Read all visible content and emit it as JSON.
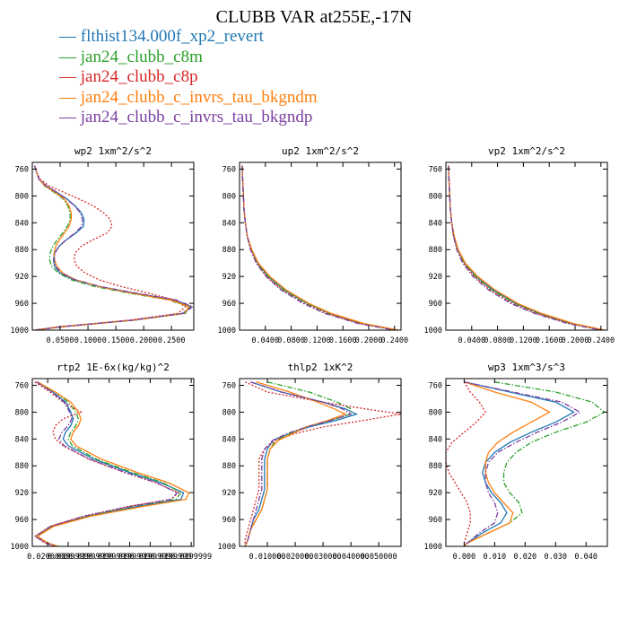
{
  "figure": {
    "title": "CLUBB VAR at255E,-17N",
    "legend": [
      {
        "label": "flthist134.000f_xp2_revert",
        "color": "#1f77b4",
        "dash": "solid"
      },
      {
        "label": "jan24_clubb_c8m",
        "color": "#2ca02c",
        "dash": "dashdot"
      },
      {
        "label": "jan24_clubb_c8p",
        "color": "#d62728",
        "dash": "dotted"
      },
      {
        "label": "jan24_clubb_c_invrs_tau_bkgndm",
        "color": "#ff7f0e",
        "dash": "solid"
      },
      {
        "label": "jan24_clubb_c_invrs_tau_bkgndp",
        "color": "#7b3fa0",
        "dash": "dashdot"
      }
    ]
  },
  "chart_data": [
    {
      "type": "line",
      "title": "wp2  1xm^2/s^2",
      "ylim": [
        1000,
        750
      ],
      "xlim": [
        0,
        0.29
      ],
      "y_ticks": [
        760,
        800,
        840,
        880,
        920,
        960,
        1000
      ],
      "x_ticks": [
        0.05,
        0.1,
        0.15,
        0.2,
        0.25
      ],
      "x_tick_labels": [
        "0.0500",
        "0.1000",
        "0.1500",
        "0.2000",
        "0.2500"
      ],
      "grid": false,
      "y": [
        755,
        765,
        775,
        785,
        795,
        805,
        815,
        825,
        835,
        845,
        855,
        865,
        875,
        885,
        895,
        905,
        915,
        925,
        935,
        945,
        955,
        965,
        975,
        985,
        995,
        1000
      ],
      "series": [
        {
          "values": [
            0.004,
            0.008,
            0.012,
            0.025,
            0.045,
            0.063,
            0.077,
            0.088,
            0.093,
            0.092,
            0.079,
            0.062,
            0.048,
            0.04,
            0.038,
            0.04,
            0.05,
            0.075,
            0.12,
            0.185,
            0.255,
            0.285,
            0.27,
            0.18,
            0.05,
            0.005
          ]
        },
        {
          "values": [
            0.004,
            0.008,
            0.012,
            0.022,
            0.04,
            0.056,
            0.064,
            0.068,
            0.068,
            0.063,
            0.055,
            0.045,
            0.037,
            0.032,
            0.031,
            0.035,
            0.047,
            0.07,
            0.112,
            0.175,
            0.245,
            0.28,
            0.275,
            0.185,
            0.055,
            0.005
          ]
        },
        {
          "values": [
            0.004,
            0.008,
            0.014,
            0.03,
            0.058,
            0.085,
            0.11,
            0.128,
            0.14,
            0.143,
            0.135,
            0.11,
            0.088,
            0.077,
            0.075,
            0.08,
            0.095,
            0.12,
            0.16,
            0.21,
            0.255,
            0.275,
            0.262,
            0.175,
            0.045,
            0.004
          ]
        },
        {
          "values": [
            0.004,
            0.008,
            0.012,
            0.023,
            0.042,
            0.058,
            0.066,
            0.07,
            0.07,
            0.066,
            0.058,
            0.049,
            0.042,
            0.039,
            0.04,
            0.044,
            0.055,
            0.078,
            0.12,
            0.18,
            0.248,
            0.282,
            0.272,
            0.182,
            0.052,
            0.005
          ]
        },
        {
          "values": [
            0.004,
            0.008,
            0.012,
            0.025,
            0.045,
            0.062,
            0.076,
            0.086,
            0.09,
            0.089,
            0.077,
            0.061,
            0.048,
            0.041,
            0.039,
            0.042,
            0.052,
            0.077,
            0.122,
            0.188,
            0.258,
            0.288,
            0.272,
            0.182,
            0.052,
            0.005
          ]
        }
      ]
    },
    {
      "type": "line",
      "title": "up2  1xm^2/s^2",
      "ylim": [
        1000,
        750
      ],
      "xlim": [
        0,
        0.25
      ],
      "y_ticks": [
        760,
        800,
        840,
        880,
        920,
        960,
        1000
      ],
      "x_ticks": [
        0.04,
        0.08,
        0.12,
        0.16,
        0.2,
        0.24
      ],
      "x_tick_labels": [
        "0.0400",
        "0.0800",
        "0.1200",
        "0.1600",
        "0.2000",
        "0.2400"
      ],
      "grid": false,
      "y": [
        755,
        780,
        800,
        820,
        840,
        860,
        880,
        900,
        920,
        940,
        960,
        975,
        990,
        1000
      ],
      "series": [
        {
          "values": [
            0.004,
            0.005,
            0.006,
            0.007,
            0.009,
            0.012,
            0.018,
            0.028,
            0.045,
            0.07,
            0.105,
            0.14,
            0.19,
            0.245
          ]
        },
        {
          "values": [
            0.004,
            0.005,
            0.006,
            0.007,
            0.009,
            0.012,
            0.017,
            0.027,
            0.044,
            0.068,
            0.103,
            0.138,
            0.188,
            0.242
          ]
        },
        {
          "values": [
            0.004,
            0.005,
            0.006,
            0.007,
            0.009,
            0.012,
            0.017,
            0.026,
            0.042,
            0.066,
            0.1,
            0.135,
            0.186,
            0.24
          ]
        },
        {
          "values": [
            0.004,
            0.005,
            0.006,
            0.007,
            0.009,
            0.012,
            0.019,
            0.029,
            0.047,
            0.072,
            0.107,
            0.142,
            0.192,
            0.246
          ]
        },
        {
          "values": [
            0.004,
            0.005,
            0.006,
            0.007,
            0.009,
            0.012,
            0.017,
            0.026,
            0.041,
            0.064,
            0.098,
            0.132,
            0.183,
            0.24
          ]
        }
      ]
    },
    {
      "type": "line",
      "title": "vp2  1xm^2/s^2",
      "ylim": [
        1000,
        750
      ],
      "xlim": [
        0,
        0.25
      ],
      "y_ticks": [
        760,
        800,
        840,
        880,
        920,
        960,
        1000
      ],
      "x_ticks": [
        0.04,
        0.08,
        0.12,
        0.16,
        0.2,
        0.24
      ],
      "x_tick_labels": [
        "0.0400",
        "0.0800",
        "0.1200",
        "0.1600",
        "0.2000",
        "0.2400"
      ],
      "grid": false,
      "y": [
        755,
        780,
        800,
        820,
        840,
        860,
        880,
        900,
        920,
        940,
        960,
        975,
        990,
        1000
      ],
      "series": [
        {
          "values": [
            0.004,
            0.005,
            0.006,
            0.007,
            0.009,
            0.012,
            0.018,
            0.029,
            0.047,
            0.073,
            0.108,
            0.145,
            0.195,
            0.245
          ]
        },
        {
          "values": [
            0.004,
            0.005,
            0.006,
            0.007,
            0.009,
            0.012,
            0.018,
            0.028,
            0.046,
            0.071,
            0.106,
            0.143,
            0.193,
            0.243
          ]
        },
        {
          "values": [
            0.004,
            0.005,
            0.006,
            0.007,
            0.009,
            0.012,
            0.017,
            0.027,
            0.044,
            0.069,
            0.103,
            0.14,
            0.19,
            0.241
          ]
        },
        {
          "values": [
            0.004,
            0.005,
            0.006,
            0.007,
            0.009,
            0.013,
            0.019,
            0.03,
            0.049,
            0.076,
            0.111,
            0.148,
            0.197,
            0.246
          ]
        },
        {
          "values": [
            0.004,
            0.005,
            0.006,
            0.007,
            0.009,
            0.012,
            0.017,
            0.026,
            0.042,
            0.066,
            0.1,
            0.137,
            0.188,
            0.24
          ]
        }
      ]
    },
    {
      "type": "line",
      "title": "rtp2  1E-6x(kg/kg)^2",
      "ylim": [
        1000,
        750
      ],
      "xlim": [
        0.011,
        0.0425
      ],
      "y_ticks": [
        760,
        800,
        840,
        880,
        920,
        960,
        1000
      ],
      "x_ticks": [
        0.014,
        0.018,
        0.022,
        0.026,
        0.03,
        0.034,
        0.038,
        0.042
      ],
      "x_tick_labels": [
        "0.0200000",
        "0.0199999",
        "0.0199999",
        "0.0199999",
        "0.0199999",
        "0.0199999",
        "0.0199999",
        "0.0199999"
      ],
      "x_tick_labels_note": "overlapping labels as printed",
      "grid": false,
      "y": [
        755,
        770,
        785,
        800,
        810,
        820,
        830,
        840,
        850,
        870,
        890,
        905,
        920,
        930,
        940,
        955,
        970,
        985,
        995,
        1000
      ],
      "series": [
        {
          "values": [
            0.012,
            0.015,
            0.0175,
            0.0185,
            0.019,
            0.0185,
            0.0175,
            0.017,
            0.018,
            0.023,
            0.03,
            0.036,
            0.0405,
            0.04,
            0.032,
            0.022,
            0.015,
            0.012,
            0.014,
            0.016
          ]
        },
        {
          "values": [
            0.012,
            0.0155,
            0.018,
            0.0195,
            0.02,
            0.0195,
            0.0185,
            0.018,
            0.0188,
            0.0235,
            0.0305,
            0.0365,
            0.04,
            0.039,
            0.031,
            0.0215,
            0.0148,
            0.0118,
            0.0138,
            0.0158
          ]
        },
        {
          "values": [
            0.0115,
            0.0145,
            0.017,
            0.0205,
            0.017,
            0.0155,
            0.015,
            0.0155,
            0.017,
            0.022,
            0.029,
            0.035,
            0.0395,
            0.038,
            0.03,
            0.021,
            0.0145,
            0.0115,
            0.0135,
            0.0155
          ]
        },
        {
          "values": [
            0.012,
            0.0155,
            0.0185,
            0.02,
            0.0205,
            0.02,
            0.019,
            0.0185,
            0.0195,
            0.0245,
            0.0315,
            0.0375,
            0.0415,
            0.041,
            0.033,
            0.0225,
            0.0152,
            0.012,
            0.014,
            0.016
          ]
        },
        {
          "values": [
            0.0118,
            0.0148,
            0.0172,
            0.0183,
            0.0187,
            0.018,
            0.0168,
            0.0162,
            0.0172,
            0.0222,
            0.0292,
            0.0352,
            0.0392,
            0.0382,
            0.0305,
            0.0212,
            0.0146,
            0.0116,
            0.0136,
            0.0156
          ]
        }
      ]
    },
    {
      "type": "line",
      "title": "thlp2  1xK^2",
      "ylim": [
        1000,
        750
      ],
      "xlim": [
        0,
        0.058
      ],
      "y_ticks": [
        760,
        800,
        840,
        880,
        920,
        960,
        1000
      ],
      "x_ticks": [
        0.01,
        0.02,
        0.03,
        0.04,
        0.05
      ],
      "x_tick_labels": [
        "0.010000",
        "0.020000",
        "0.030000",
        "0.040000",
        "0.050000"
      ],
      "grid": false,
      "y": [
        755,
        770,
        785,
        795,
        803,
        812,
        822,
        832,
        842,
        855,
        870,
        885,
        900,
        915,
        930,
        945,
        960,
        975,
        990,
        1000
      ],
      "series": [
        {
          "values": [
            0.004,
            0.015,
            0.03,
            0.038,
            0.042,
            0.035,
            0.025,
            0.018,
            0.012,
            0.01,
            0.009,
            0.009,
            0.009,
            0.009,
            0.008,
            0.007,
            0.005,
            0.004,
            0.003,
            0.002
          ]
        },
        {
          "values": [
            0.01,
            0.025,
            0.035,
            0.04,
            0.04,
            0.033,
            0.024,
            0.018,
            0.013,
            0.011,
            0.01,
            0.01,
            0.01,
            0.01,
            0.009,
            0.008,
            0.006,
            0.004,
            0.003,
            0.002
          ]
        },
        {
          "values": [
            0.002,
            0.01,
            0.03,
            0.045,
            0.058,
            0.045,
            0.03,
            0.02,
            0.013,
            0.009,
            0.007,
            0.007,
            0.007,
            0.007,
            0.006,
            0.005,
            0.004,
            0.003,
            0.002,
            0.002
          ]
        },
        {
          "values": [
            0.006,
            0.018,
            0.028,
            0.034,
            0.038,
            0.032,
            0.024,
            0.019,
            0.014,
            0.011,
            0.01,
            0.01,
            0.01,
            0.01,
            0.009,
            0.008,
            0.006,
            0.004,
            0.003,
            0.002
          ]
        },
        {
          "values": [
            0.004,
            0.015,
            0.03,
            0.037,
            0.04,
            0.033,
            0.024,
            0.017,
            0.012,
            0.009,
            0.008,
            0.008,
            0.008,
            0.008,
            0.007,
            0.006,
            0.005,
            0.004,
            0.003,
            0.002
          ]
        }
      ]
    },
    {
      "type": "line",
      "title": "wp3  1xm^3/s^3",
      "ylim": [
        1000,
        750
      ],
      "xlim": [
        -0.006,
        0.047
      ],
      "y_ticks": [
        760,
        800,
        840,
        880,
        920,
        960,
        1000
      ],
      "x_ticks": [
        0,
        0.01,
        0.02,
        0.03,
        0.04
      ],
      "x_tick_labels": [
        "0.000",
        "0.010",
        "0.020",
        "0.030",
        "0.040"
      ],
      "grid": false,
      "y": [
        755,
        770,
        785,
        800,
        815,
        830,
        845,
        860,
        875,
        890,
        905,
        920,
        935,
        950,
        965,
        980,
        995,
        1000
      ],
      "series": [
        {
          "values": [
            0.0,
            0.015,
            0.03,
            0.036,
            0.03,
            0.022,
            0.015,
            0.01,
            0.007,
            0.006,
            0.007,
            0.009,
            0.012,
            0.014,
            0.012,
            0.006,
            0.001,
            0.0
          ]
        },
        {
          "values": [
            0.01,
            0.03,
            0.042,
            0.046,
            0.04,
            0.03,
            0.022,
            0.017,
            0.014,
            0.013,
            0.013,
            0.015,
            0.018,
            0.019,
            0.015,
            0.008,
            0.001,
            0.0
          ]
        },
        {
          "values": [
            0.0,
            0.002,
            0.005,
            0.007,
            0.004,
            0.0,
            -0.004,
            -0.006,
            -0.006,
            -0.005,
            -0.003,
            -0.001,
            0.001,
            0.002,
            0.002,
            0.001,
            0.0,
            0.0
          ]
        },
        {
          "values": [
            0.0,
            0.01,
            0.022,
            0.028,
            0.022,
            0.016,
            0.011,
            0.008,
            0.007,
            0.007,
            0.008,
            0.01,
            0.013,
            0.016,
            0.015,
            0.008,
            0.001,
            0.0
          ]
        },
        {
          "values": [
            0.0,
            0.016,
            0.032,
            0.038,
            0.032,
            0.024,
            0.017,
            0.011,
            0.008,
            0.007,
            0.007,
            0.008,
            0.01,
            0.011,
            0.01,
            0.005,
            0.001,
            0.0
          ]
        }
      ]
    }
  ]
}
